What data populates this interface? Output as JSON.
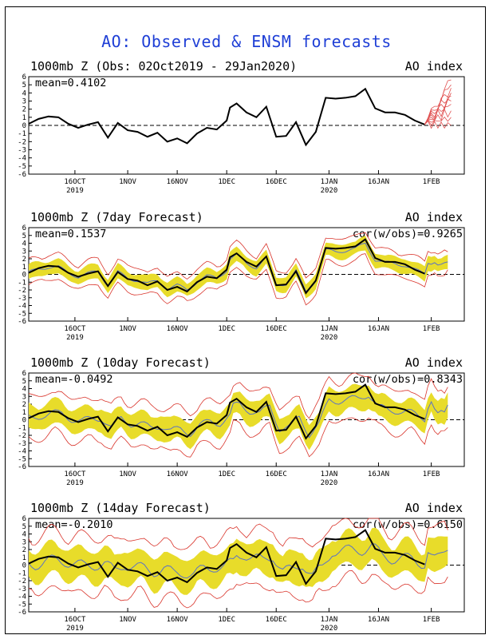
{
  "title": "AO: Observed & ENSM forecasts",
  "colors": {
    "title": "#1f3fd6",
    "observed": "#000000",
    "spread": "#e8dc2a",
    "envelope": "#d9342b",
    "mean": "#5b73c4",
    "members": "#e05050"
  },
  "chart_data": [
    {
      "type": "line",
      "panel_title": "1000mb Z (Obs: 02Oct2019 - 29Jan2020)",
      "right_label": "AO index",
      "mean_label": "mean=0.4102",
      "ylim": [
        -6,
        6
      ],
      "yticks": [
        "6",
        "5",
        "4",
        "3",
        "2",
        "1",
        "0",
        "-1",
        "-2",
        "-3",
        "-4",
        "-5",
        "-6"
      ],
      "xticks": [
        "16OCT",
        "1NOV",
        "16NOV",
        "1DEC",
        "16DEC",
        "1JAN",
        "16JAN",
        "1FEB"
      ],
      "year_labels": [
        "2019",
        "2020"
      ],
      "series": [
        {
          "name": "observed",
          "days": [
            0,
            3,
            6,
            9,
            12,
            15,
            18,
            21,
            24,
            27,
            30,
            33,
            36,
            39,
            42,
            45,
            48,
            51,
            54,
            57,
            60,
            61,
            63,
            66,
            69,
            72,
            75,
            78,
            81,
            84,
            87,
            90,
            93,
            96,
            99,
            102,
            105,
            108,
            111,
            114,
            117,
            120
          ],
          "values": [
            0.2,
            0.8,
            1.1,
            1.0,
            0.2,
            -0.3,
            0.1,
            0.4,
            -1.5,
            0.3,
            -0.6,
            -0.8,
            -1.4,
            -0.9,
            -2.0,
            -1.6,
            -2.2,
            -1.0,
            -0.3,
            -0.5,
            0.6,
            2.2,
            2.7,
            1.6,
            1.0,
            2.3,
            -1.4,
            -1.3,
            0.4,
            -2.4,
            -0.8,
            3.4,
            3.3,
            3.4,
            3.6,
            4.5,
            2.1,
            1.6,
            1.6,
            1.3,
            0.6,
            0.1
          ]
        },
        {
          "name": "ensemble members",
          "start_day": 120,
          "end_day": 128,
          "start_value": 0.1,
          "end_values": [
            5.6,
            5.0,
            4.6,
            4.0,
            3.6,
            3.0,
            2.6,
            1.8,
            1.0,
            0.0
          ]
        }
      ]
    },
    {
      "type": "line",
      "panel_title": "1000mb Z (7day Forecast)",
      "right_label": "AO index",
      "mean_label": "mean=0.1537",
      "cor_label": "cor(w/obs)=0.9265",
      "ylim": [
        -6,
        6
      ],
      "yticks": [
        "6",
        "5",
        "4",
        "3",
        "2",
        "1",
        "0",
        "-1",
        "-2",
        "-3",
        "-4",
        "-5",
        "-6"
      ],
      "xticks": [
        "16OCT",
        "1NOV",
        "16NOV",
        "1DEC",
        "16DEC",
        "1JAN",
        "16JAN",
        "1FEB"
      ],
      "year_labels": [
        "2019",
        "2020"
      ],
      "spread": 0.9,
      "envelope": 1.6,
      "observed_end_day": 120,
      "forecast_end_day": 127,
      "forecast_tail": [
        1.6,
        1.4,
        1.3,
        1.5,
        1.2,
        1.3,
        1.5,
        1.6
      ],
      "envelope_tail_hi": 2.9,
      "envelope_tail_lo": 0.6
    },
    {
      "type": "line",
      "panel_title": "1000mb Z (10day Forecast)",
      "right_label": "AO index",
      "mean_label": "mean=-0.0492",
      "cor_label": "cor(w/obs)=0.8343",
      "ylim": [
        -6,
        6
      ],
      "yticks": [
        "6",
        "5",
        "4",
        "3",
        "2",
        "1",
        "0",
        "-1",
        "-2",
        "-3",
        "-4",
        "-5",
        "-6"
      ],
      "xticks": [
        "16OCT",
        "1NOV",
        "16NOV",
        "1DEC",
        "16DEC",
        "1JAN",
        "16JAN",
        "1FEB"
      ],
      "year_labels": [
        "2019",
        "2020"
      ],
      "spread": 1.5,
      "envelope": 2.7,
      "observed_end_day": 120,
      "forecast_end_day": 127,
      "forecast_tail": [
        1.0,
        1.4,
        2.3,
        1.4,
        0.9,
        1.2,
        1.0,
        1.9
      ],
      "envelope_tail_hi": 4.2,
      "envelope_tail_lo": -1.0
    },
    {
      "type": "line",
      "panel_title": "1000mb Z (14day Forecast)",
      "right_label": "AO index",
      "mean_label": "mean=-0.2010",
      "cor_label": "cor(w/obs)=0.6150",
      "ylim": [
        -6,
        6
      ],
      "yticks": [
        "6",
        "5",
        "4",
        "3",
        "2",
        "1",
        "0",
        "-1",
        "-2",
        "-3",
        "-4",
        "-5",
        "-6"
      ],
      "xticks": [
        "16OCT",
        "1NOV",
        "16NOV",
        "1DEC",
        "16DEC",
        "1JAN",
        "16JAN",
        "1FEB"
      ],
      "year_labels": [
        "2019",
        "2020"
      ],
      "spread": 2.0,
      "envelope": 3.6,
      "observed_end_day": 120,
      "forecast_end_day": 127,
      "forecast_tail": [
        1.4,
        1.6,
        1.4,
        1.3,
        1.5,
        1.6,
        1.7,
        1.9
      ],
      "envelope_tail_hi": 4.5,
      "envelope_tail_lo": -1.5
    }
  ]
}
